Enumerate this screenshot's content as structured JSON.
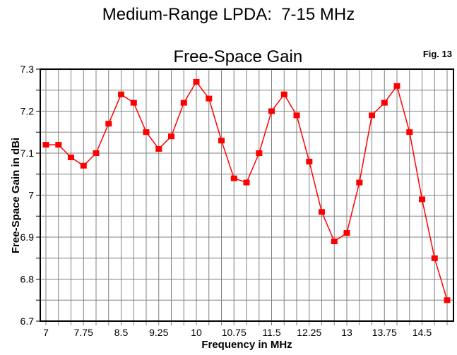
{
  "header": {
    "title_line1": "Medium-Range LPDA:  7-15 MHz",
    "title_line2": "Free-Space Gain",
    "figure_label": "Fig. 13"
  },
  "chart_data": {
    "type": "line",
    "title": "Medium-Range LPDA: 7-15 MHz Free-Space Gain",
    "xlabel": "Frequency in MHz",
    "ylabel": "Free-Space Gain in dBi",
    "xlim": [
      7,
      15
    ],
    "ylim": [
      6.7,
      7.3
    ],
    "grid": true,
    "x_grid_step": 0.25,
    "y_grid_step": 0.05,
    "legend": "none",
    "x": [
      7.0,
      7.25,
      7.5,
      7.75,
      8.0,
      8.25,
      8.5,
      8.75,
      9.0,
      9.25,
      9.5,
      9.75,
      10.0,
      10.25,
      10.5,
      10.75,
      11.0,
      11.25,
      11.5,
      11.75,
      12.0,
      12.25,
      12.5,
      12.75,
      13.0,
      13.25,
      13.5,
      13.75,
      14.0,
      14.25,
      14.5,
      14.75,
      15.0
    ],
    "y": [
      7.12,
      7.12,
      7.09,
      7.07,
      7.1,
      7.17,
      7.24,
      7.22,
      7.15,
      7.11,
      7.14,
      7.22,
      7.27,
      7.23,
      7.13,
      7.04,
      7.03,
      7.1,
      7.2,
      7.24,
      7.19,
      7.08,
      6.96,
      6.89,
      6.91,
      7.03,
      7.19,
      7.22,
      7.26,
      7.15,
      6.99,
      6.85,
      6.75
    ],
    "x_major_ticks": [
      {
        "value": 7,
        "label": "7"
      },
      {
        "value": 7.75,
        "label": "7.75"
      },
      {
        "value": 8.5,
        "label": "8.5"
      },
      {
        "value": 9.25,
        "label": "9.25"
      },
      {
        "value": 10,
        "label": "10"
      },
      {
        "value": 10.75,
        "label": "10.75"
      },
      {
        "value": 11.5,
        "label": "11.5"
      },
      {
        "value": 12.25,
        "label": "12.25"
      },
      {
        "value": 13,
        "label": "13"
      },
      {
        "value": 13.75,
        "label": "13.75"
      },
      {
        "value": 14.5,
        "label": "14.5"
      }
    ],
    "y_major_ticks": [
      {
        "value": 7.3,
        "label": "7.3"
      },
      {
        "value": 7.2,
        "label": "7.2"
      },
      {
        "value": 7.1,
        "label": "7.1"
      },
      {
        "value": 7.0,
        "label": "7"
      },
      {
        "value": 6.9,
        "label": "6.9"
      },
      {
        "value": 6.8,
        "label": "6.8"
      },
      {
        "value": 6.7,
        "label": "6.7"
      }
    ],
    "colors": {
      "line": "#ff0000",
      "marker": "#ff0000",
      "grid": "#808080",
      "frame": "#000000",
      "text": "#000000",
      "background": "#ffffff"
    },
    "marker_shape": "square"
  }
}
